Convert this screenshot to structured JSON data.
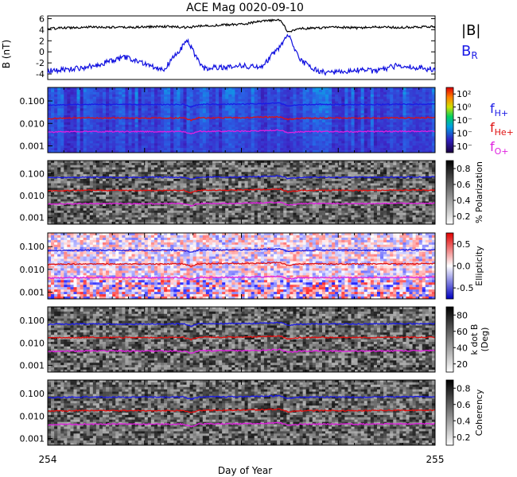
{
  "title": "ACE Mag 0020-09-10",
  "xaxis": {
    "label": "Day of Year",
    "start_label": "254",
    "end_label": "255",
    "range": [
      254,
      255
    ]
  },
  "colors": {
    "btotal": "#000000",
    "br": "#1010e0",
    "f_hplus": "#1a1ae6",
    "f_heplus": "#e01010",
    "f_oplus": "#e020e0"
  },
  "chart_data": [
    {
      "type": "line",
      "panel": "magnetic-field",
      "ylabel": "B (nT)",
      "ylim": [
        -5,
        6.5
      ],
      "yticks": [
        "6",
        "4",
        "2",
        "0",
        "-2",
        "-4"
      ],
      "x": [
        254.0,
        254.1,
        254.2,
        254.3,
        254.36,
        254.4,
        254.5,
        254.55,
        254.6,
        254.62,
        254.65,
        254.7,
        254.74,
        254.8,
        254.85,
        254.9,
        255.0
      ],
      "series": [
        {
          "name": "|B|",
          "values": [
            4.2,
            4.5,
            4.4,
            4.6,
            4.4,
            4.7,
            5.0,
            5.5,
            5.8,
            3.6,
            4.2,
            4.3,
            4.5,
            4.3,
            4.5,
            4.4,
            4.6
          ]
        },
        {
          "name": "B",
          "subscript": "R",
          "values": [
            -3.5,
            -2.8,
            -1.0,
            -3.2,
            2.0,
            -3.0,
            -2.5,
            -2.8,
            1.0,
            3.2,
            -1.5,
            -3.6,
            -3.8,
            -3.3,
            -3.5,
            -2.5,
            -3.2
          ]
        }
      ]
    },
    {
      "type": "heatmap",
      "panel": "power",
      "yticks": [
        "0.100",
        "0.010",
        "0.001"
      ],
      "colorbar": {
        "labels": [
          "10²",
          "10⁰",
          "10⁻",
          "10⁻",
          "10⁻"
        ]
      },
      "legend": [
        "H+",
        "He+",
        "O+"
      ],
      "legend_prefix": "f"
    },
    {
      "type": "heatmap",
      "panel": "polarization",
      "yticks": [
        "0.100",
        "0.010",
        "0.001"
      ],
      "colorbar": {
        "label": "% Polarization",
        "ticks": [
          "0.8",
          "0.6",
          "0.4",
          "0.2"
        ]
      }
    },
    {
      "type": "heatmap",
      "panel": "ellipticity",
      "yticks": [
        "0.100",
        "0.010",
        "0.001"
      ],
      "colorbar": {
        "label": "Ellipticity",
        "ticks": [
          "0.5",
          "0.0",
          "-0.5"
        ]
      }
    },
    {
      "type": "heatmap",
      "panel": "k-dot-b",
      "yticks": [
        "0.100",
        "0.010",
        "0.001"
      ],
      "colorbar": {
        "label": "k dot B",
        "label2": "(Deg)",
        "ticks": [
          "80",
          "60",
          "40",
          "20"
        ]
      }
    },
    {
      "type": "heatmap",
      "panel": "coherency",
      "yticks": [
        "0.100",
        "0.010",
        "0.001"
      ],
      "colorbar": {
        "label": "Coherency",
        "ticks": [
          "0.8",
          "0.6",
          "0.4",
          "0.2"
        ]
      }
    }
  ],
  "gyrofrequency": {
    "x": [
      254.0,
      254.1,
      254.25,
      254.35,
      254.37,
      254.39,
      254.5,
      254.55,
      254.6,
      254.62,
      254.65,
      254.7,
      254.8,
      254.9,
      255.0
    ],
    "f_hplus": [
      0.066,
      0.07,
      0.069,
      0.07,
      0.055,
      0.071,
      0.072,
      0.075,
      0.08,
      0.06,
      0.068,
      0.07,
      0.069,
      0.071,
      0.072
    ]
  }
}
